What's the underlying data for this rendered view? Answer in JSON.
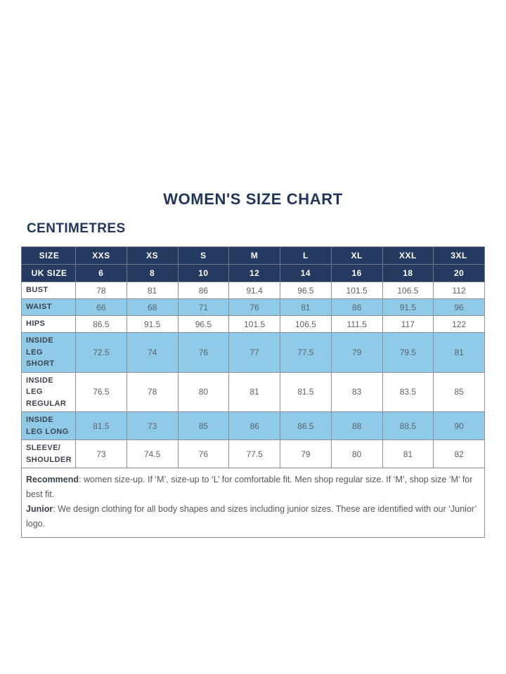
{
  "title": "WOMEN'S SIZE CHART",
  "section_label": "CENTIMETRES",
  "colors": {
    "header_navy": "#243a60",
    "highlight_blue": "#8fcbe9",
    "title_navy": "#22365c",
    "border_gray": "#8f8f8f"
  },
  "table": {
    "rows": [
      {
        "label": "SIZE",
        "values": [
          "XXS",
          "XS",
          "S",
          "M",
          "L",
          "XL",
          "XXL",
          "3XL"
        ],
        "style": "header"
      },
      {
        "label": "UK SIZE",
        "values": [
          "6",
          "8",
          "10",
          "12",
          "14",
          "16",
          "18",
          "20"
        ],
        "style": "header"
      },
      {
        "label": "BUST",
        "values": [
          "78",
          "81",
          "86",
          "91.4",
          "96.5",
          "101.5",
          "106.5",
          "112"
        ],
        "style": "plain"
      },
      {
        "label": "WAIST",
        "values": [
          "66",
          "68",
          "71",
          "76",
          "81",
          "86",
          "91.5",
          "96"
        ],
        "style": "blue"
      },
      {
        "label": "HIPS",
        "values": [
          "86.5",
          "91.5",
          "96.5",
          "101.5",
          "106.5",
          "111.5",
          "117",
          "122"
        ],
        "style": "plain"
      },
      {
        "label": "INSIDE LEG SHORT",
        "values": [
          "72.5",
          "74",
          "76",
          "77",
          "77.5",
          "79",
          "79.5",
          "81"
        ],
        "style": "blue"
      },
      {
        "label": "INSIDE LEG REGULAR",
        "values": [
          "76.5",
          "78",
          "80",
          "81",
          "81.5",
          "83",
          "83.5",
          "85"
        ],
        "style": "plain"
      },
      {
        "label": "INSIDE LEG LONG",
        "values": [
          "81.5",
          "73",
          "85",
          "86",
          "86.5",
          "88",
          "88.5",
          "90"
        ],
        "style": "blue"
      },
      {
        "label": "SLEEVE/ SHOULDER",
        "values": [
          "73",
          "74.5",
          "76",
          "77.5",
          "79",
          "80",
          "81",
          "82"
        ],
        "style": "plain"
      }
    ],
    "notes": [
      {
        "bold": "Recommend",
        "text": ": women size-up. If ‘M’, size-up to ‘L’ for comfortable fit. Men shop regular size. If ‘M’, shop size ‘M’ for best fit."
      },
      {
        "bold": "Junior",
        "text": ": We design clothing for all body shapes and sizes including junior sizes. These are identified with our ‘Junior’ logo."
      }
    ]
  }
}
